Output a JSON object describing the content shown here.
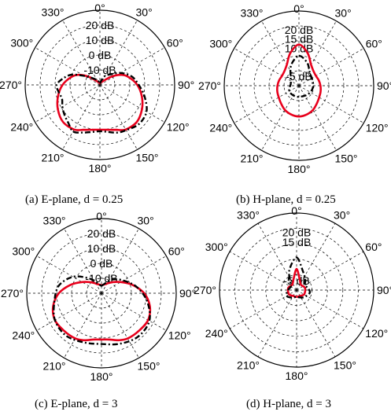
{
  "chart_data": [
    {
      "type": "polar-line",
      "caption": "(a)  E-plane,  d  =  0.25",
      "angle_tick_labels": [
        "0°",
        "30°",
        "60°",
        "90°",
        "120°",
        "150°",
        "180°",
        "210°",
        "240°",
        "270°",
        "300°",
        "330°"
      ],
      "radial_tick_labels": [
        "-10 dB",
        "0 dB",
        "10 dB",
        "20 dB"
      ],
      "radial_ticks_db": [
        -10,
        0,
        10,
        20
      ],
      "radial_range_db": [
        -20,
        30
      ],
      "grid": true,
      "series": [
        {
          "style": "solid",
          "color": "#e8001c",
          "angles": [
            0,
            15,
            25,
            35,
            45,
            55,
            65,
            75,
            90,
            105,
            120,
            135,
            150,
            160,
            170,
            180,
            190,
            200,
            210,
            225,
            240,
            255,
            270,
            285,
            295,
            305,
            315,
            325,
            335,
            345
          ],
          "gain_db": [
            -19,
            -18.5,
            -18,
            -17.5,
            -15.5,
            -10,
            -4,
            0,
            5,
            9,
            12.5,
            15,
            14.5,
            12,
            10.5,
            10,
            10.5,
            12,
            14.5,
            15,
            12.5,
            9,
            5,
            0,
            -4,
            -10,
            -15.5,
            -17.5,
            -18,
            -18.5
          ]
        },
        {
          "style": "dashdot",
          "color": "#000000",
          "angles": [
            0,
            20,
            30,
            45,
            60,
            75,
            90,
            105,
            120,
            135,
            150,
            160,
            170,
            180,
            190,
            200,
            210,
            220,
            230,
            240,
            250,
            260,
            270,
            280,
            290,
            300,
            315,
            330,
            345
          ],
          "gain_db": [
            -19,
            -16,
            -13,
            -10,
            -4,
            2,
            6,
            11,
            16,
            17,
            15,
            14,
            12,
            11,
            12,
            14,
            16,
            13,
            11,
            9,
            7,
            8,
            9,
            5,
            0,
            -8,
            -14,
            -16.5,
            -18
          ]
        }
      ]
    },
    {
      "type": "polar-line",
      "caption": "(b)  H-plane,  d  =  0.25",
      "angle_tick_labels": [
        "0°",
        "30°",
        "60°",
        "90°",
        "120°",
        "150°",
        "180°",
        "210°",
        "240°",
        "270°",
        "300°",
        "330°"
      ],
      "radial_tick_labels": [
        "-5 dB",
        "10 dB",
        "15 dB",
        "20 dB"
      ],
      "radial_ticks_db": [
        -5,
        10,
        15,
        20
      ],
      "radial_range_db": [
        -10,
        30
      ],
      "grid": true,
      "series": [
        {
          "style": "solid",
          "color": "#e8001c",
          "angles": [
            0,
            15,
            30,
            45,
            60,
            75,
            90,
            105,
            120,
            135,
            150,
            165,
            180,
            195,
            210,
            225,
            240,
            255,
            270,
            285,
            300,
            315,
            330,
            345
          ],
          "gain_db": [
            12,
            8,
            3,
            1,
            0.5,
            1,
            1.5,
            2,
            2.5,
            3.5,
            5,
            6,
            6.5,
            6,
            5,
            3.5,
            2.5,
            2,
            1.5,
            1,
            0.5,
            1,
            3,
            8
          ]
        },
        {
          "style": "dashdot",
          "color": "#000000",
          "angles": [
            0,
            20,
            40,
            60,
            80,
            100,
            120,
            140,
            160,
            180,
            200,
            220,
            240,
            260,
            280,
            300,
            320,
            340
          ],
          "gain_db": [
            6,
            3,
            -1,
            -2,
            -2.5,
            -2.5,
            -3,
            -3.5,
            -4,
            -4,
            -4,
            -4,
            -4,
            -5,
            -5.5,
            -5,
            -3,
            2
          ]
        }
      ]
    },
    {
      "type": "polar-line",
      "caption": "(c)  E-plane,  d  =  3",
      "angle_tick_labels": [
        "0°",
        "30°",
        "60°",
        "90°",
        "120°",
        "150°",
        "180°",
        "210°",
        "240°",
        "270°",
        "300°",
        "330°"
      ],
      "radial_tick_labels": [
        "-10 dB",
        "0 dB",
        "10 dB",
        "20 dB"
      ],
      "radial_ticks_db": [
        -10,
        0,
        10,
        20
      ],
      "radial_range_db": [
        -20,
        30
      ],
      "grid": true,
      "series": [
        {
          "style": "solid",
          "color": "#e8001c",
          "angles": [
            0,
            15,
            30,
            45,
            60,
            75,
            90,
            105,
            120,
            135,
            150,
            160,
            170,
            180,
            190,
            200,
            210,
            225,
            240,
            255,
            270,
            285,
            300,
            315,
            330,
            345
          ],
          "gain_db": [
            -14.5,
            -14,
            -12.5,
            -9.5,
            -5,
            1.5,
            8.5,
            13.5,
            16,
            15.5,
            15,
            13.5,
            11.5,
            11,
            11.5,
            13.5,
            15,
            15.5,
            16,
            13.5,
            8.5,
            1.5,
            -5,
            -9.5,
            -12.5,
            -14
          ]
        },
        {
          "style": "dashdot",
          "color": "#000000",
          "angles": [
            0,
            20,
            40,
            60,
            80,
            100,
            120,
            140,
            160,
            180,
            200,
            220,
            240,
            260,
            280,
            300,
            320,
            340
          ],
          "gain_db": [
            -15,
            -13,
            -8,
            -3,
            4,
            11,
            17,
            18,
            16,
            14,
            15,
            17,
            16,
            12,
            9,
            2,
            -7,
            -13
          ]
        }
      ]
    },
    {
      "type": "polar-line",
      "caption": "(d)  H-plane,  d  =  3",
      "angle_tick_labels": [
        "0°",
        "30°",
        "60°",
        "90°",
        "120°",
        "150°",
        "180°",
        "210°",
        "240°",
        "270°",
        "300°",
        "330°"
      ],
      "radial_tick_labels": [
        "-5 dB",
        "15 dB",
        "20 dB"
      ],
      "radial_ticks_db": [
        -5,
        15,
        20
      ],
      "radial_range_db": [
        -10,
        30
      ],
      "grid": true,
      "series": [
        {
          "style": "solid",
          "color": "#e8001c",
          "angles": [
            0,
            15,
            30,
            45,
            60,
            75,
            90,
            105,
            120,
            135,
            150,
            165,
            180,
            195,
            210,
            225,
            240,
            255,
            270,
            285,
            300,
            315,
            330,
            345
          ],
          "gain_db": [
            1,
            -4,
            -6,
            -6.5,
            -6,
            -5.5,
            -5.5,
            -5.5,
            -5.5,
            -6,
            -6.5,
            -6.5,
            -6.5,
            -6.5,
            -6.5,
            -6,
            -5.5,
            -5.5,
            -5.5,
            -5.5,
            -6,
            -6.5,
            -6,
            -4
          ]
        },
        {
          "style": "dashdot",
          "color": "#000000",
          "angles": [
            0,
            20,
            40,
            60,
            80,
            100,
            120,
            140,
            160,
            180,
            200,
            220,
            240,
            260,
            280,
            300,
            320,
            340
          ],
          "gain_db": [
            7,
            0,
            -3,
            -5,
            -4,
            -3,
            -4,
            -5,
            -6,
            -6.5,
            -6,
            -5,
            -4,
            -5,
            -6,
            -6.5,
            -5,
            1
          ]
        }
      ]
    }
  ]
}
